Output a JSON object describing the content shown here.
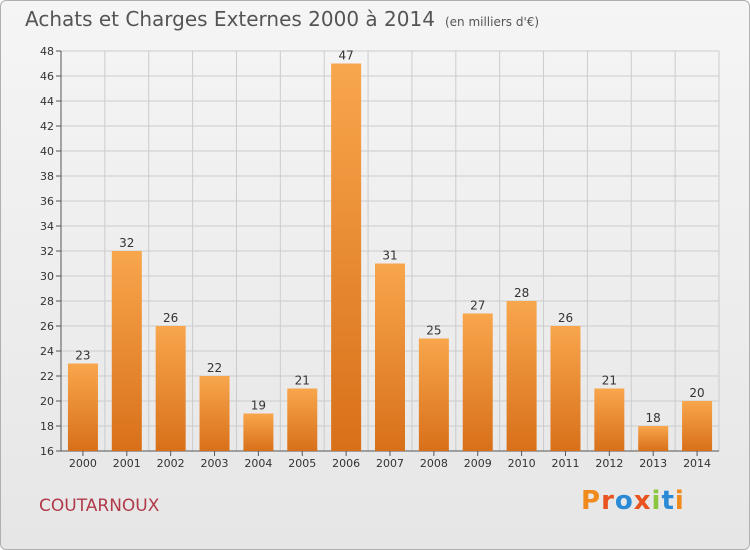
{
  "header": {
    "title": "Achats et Charges Externes 2000 à 2014",
    "unit_note": "(en milliers d'€)"
  },
  "footer": {
    "town": "COUTARNOUX",
    "brand": "Proxiti",
    "brand_colors": [
      "#f08a1c",
      "#e9531f",
      "#2a8ad6",
      "#e9531f",
      "#8cc63f",
      "#2a8ad6",
      "#f08a1c"
    ]
  },
  "colors": {
    "bar_light": "#f8a64c",
    "bar_dark": "#d8701a",
    "grid": "#cccccc",
    "town_text": "#b03a4a"
  },
  "chart_data": {
    "type": "bar",
    "title": "Achats et Charges Externes 2000 à 2014",
    "subtitle": "(en milliers d'€)",
    "xlabel": "",
    "ylabel": "",
    "categories": [
      "2000",
      "2001",
      "2002",
      "2003",
      "2004",
      "2005",
      "2006",
      "2007",
      "2008",
      "2009",
      "2010",
      "2011",
      "2012",
      "2013",
      "2014"
    ],
    "values": [
      23,
      32,
      26,
      22,
      19,
      21,
      47,
      31,
      25,
      27,
      28,
      26,
      21,
      18,
      20
    ],
    "ylim": [
      16,
      48
    ],
    "yticks": [
      16,
      18,
      20,
      22,
      24,
      26,
      28,
      30,
      32,
      34,
      36,
      38,
      40,
      42,
      44,
      46,
      48
    ],
    "grid": true,
    "legend": "none"
  }
}
